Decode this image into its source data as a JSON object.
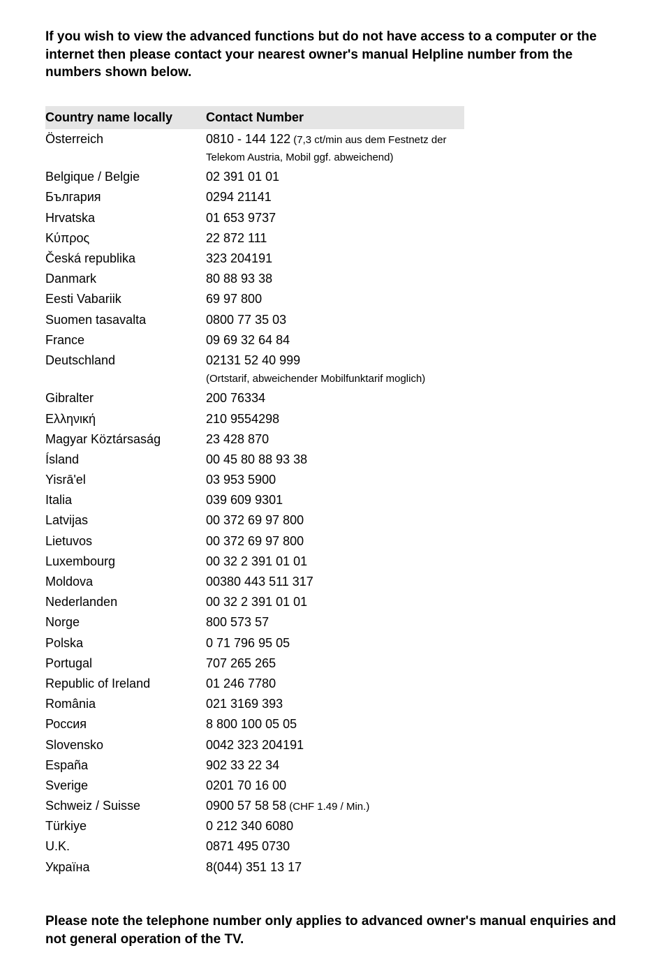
{
  "intro_text": "If you wish to view the advanced functions but do not have access to a computer or the internet then please contact your nearest owner's manual Helpline number from the numbers shown below.",
  "outro_text": "Please note the telephone number only applies to advanced owner's manual enquiries and not general operation of the TV.",
  "table": {
    "header_country": "Country name locally",
    "header_contact": "Contact Number",
    "header_bg": "#e5e5e5",
    "text_color": "#000000",
    "rows": [
      {
        "country": "Österreich",
        "number": "0810 - 144 122",
        "note": "(7,3 ct/min aus dem Festnetz der Telekom Austria, Mobil ggf. abweichend)"
      },
      {
        "country": "Belgique / Belgie",
        "number": "02 391 01 01",
        "note": ""
      },
      {
        "country": "България",
        "number": "0294 21141",
        "note": ""
      },
      {
        "country": "Hrvatska",
        "number": "01 653 9737",
        "note": ""
      },
      {
        "country": "Κύπρος",
        "number": "22 872 111",
        "note": ""
      },
      {
        "country": "Česká republika",
        "number": "323 204191",
        "note": ""
      },
      {
        "country": "Danmark",
        "number": "80 88 93 38",
        "note": ""
      },
      {
        "country": "Eesti Vabariik",
        "number": "69 97 800",
        "note": ""
      },
      {
        "country": "Suomen tasavalta",
        "number": "0800 77 35 03",
        "note": ""
      },
      {
        "country": "France",
        "number": "09 69 32 64 84",
        "note": ""
      },
      {
        "country": "Deutschland",
        "number": "02131 52 40 999",
        "note": "(Ortstarif, abweichender Mobilfunktarif moglich)",
        "note_below": true
      },
      {
        "country": "Gibralter",
        "number": "200 76334",
        "note": ""
      },
      {
        "country": "Ελληνική",
        "number": "210 9554298",
        "note": ""
      },
      {
        "country": "Magyar Köztársaság",
        "number": "23 428 870",
        "note": ""
      },
      {
        "country": "Ísland",
        "number": "00 45 80 88 93 38",
        "note": ""
      },
      {
        "country": "Yisrā'el",
        "number": "03 953 5900",
        "note": ""
      },
      {
        "country": "Italia",
        "number": "039 609 9301",
        "note": ""
      },
      {
        "country": "Latvijas",
        "number": "00 372 69 97 800",
        "note": ""
      },
      {
        "country": "Lietuvos",
        "number": "00 372 69 97 800",
        "note": ""
      },
      {
        "country": "Luxembourg",
        "number": "00 32 2 391 01 01",
        "note": ""
      },
      {
        "country": "Moldova",
        "number": "00380 443 511 317",
        "note": ""
      },
      {
        "country": "Nederlanden",
        "number": "00 32 2 391 01 01",
        "note": ""
      },
      {
        "country": "Norge",
        "number": "800 573 57",
        "note": ""
      },
      {
        "country": "Polska",
        "number": "0 71 796 95 05",
        "note": ""
      },
      {
        "country": "Portugal",
        "number": "707 265 265",
        "note": ""
      },
      {
        "country": "Republic of Ireland",
        "number": "01 246 7780",
        "note": ""
      },
      {
        "country": "România",
        "number": "021 3169 393",
        "note": ""
      },
      {
        "country": "Россия",
        "number": "8 800 100 05 05",
        "note": ""
      },
      {
        "country": "Slovensko",
        "number": "0042 323 204191",
        "note": ""
      },
      {
        "country": "España",
        "number": "902 33 22 34",
        "note": ""
      },
      {
        "country": "Sverige",
        "number": "0201 70 16 00",
        "note": ""
      },
      {
        "country": "Schweiz / Suisse",
        "number": "0900 57 58 58",
        "note": "(CHF 1.49 / Min.)"
      },
      {
        "country": "Türkiye",
        "number": "0 212 340 6080",
        "note": ""
      },
      {
        "country": "U.K.",
        "number": "0871 495 0730",
        "note": ""
      },
      {
        "country": "Україна",
        "number": "8(044) 351 13 17",
        "note": ""
      }
    ]
  }
}
